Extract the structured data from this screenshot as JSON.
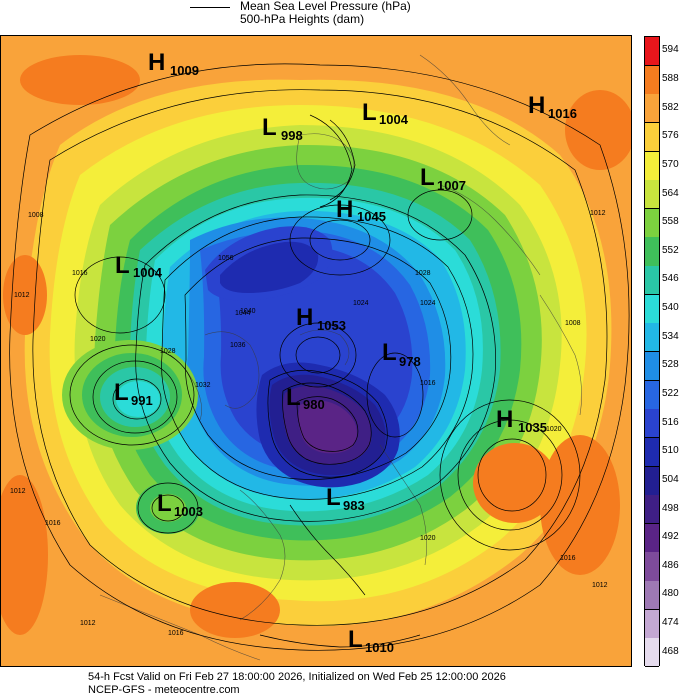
{
  "legend": {
    "items": [
      {
        "label": "Mean Sea Level Pressure (hPa)",
        "style": "line"
      },
      {
        "label": "500-hPa Heights (dam)",
        "style": "fill"
      }
    ]
  },
  "colorbar": {
    "levels": [
      "594",
      "588",
      "582",
      "576",
      "570",
      "564",
      "558",
      "552",
      "546",
      "540",
      "534",
      "528",
      "522",
      "516",
      "510",
      "504",
      "498",
      "492",
      "486",
      "480",
      "474",
      "468"
    ],
    "colors": [
      "#e8161c",
      "#f57c1f",
      "#f9a33a",
      "#fbcf3b",
      "#f4ee3a",
      "#c8e43e",
      "#7cd13f",
      "#3fbf5a",
      "#2ac7a6",
      "#2bdcd8",
      "#22b8e6",
      "#1f8ee6",
      "#2766e2",
      "#2a43cf",
      "#1e2bb0",
      "#221f92",
      "#3f1f85",
      "#5a2486",
      "#7e4b9b",
      "#9e79b4",
      "#c4a8d3",
      "#e6dcee"
    ]
  },
  "pressure_centers": [
    {
      "type": "H",
      "value": "1009",
      "color": "#000"
    },
    {
      "type": "L",
      "value": "998",
      "color": "#000"
    },
    {
      "type": "L",
      "value": "1004",
      "color": "#000"
    },
    {
      "type": "H",
      "value": "1016",
      "color": "#000"
    },
    {
      "type": "L",
      "value": "1007",
      "color": "#000"
    },
    {
      "type": "H",
      "value": "1045",
      "color": "#000"
    },
    {
      "type": "L",
      "value": "1004",
      "color": "#000"
    },
    {
      "type": "H",
      "value": "1053",
      "color": "#000"
    },
    {
      "type": "L",
      "value": "978",
      "color": "#000"
    },
    {
      "type": "L",
      "value": "991",
      "color": "#000"
    },
    {
      "type": "L",
      "value": "980",
      "color": "#000"
    },
    {
      "type": "H",
      "value": "1035",
      "color": "#000"
    },
    {
      "type": "L",
      "value": "1003",
      "color": "#000"
    },
    {
      "type": "L",
      "value": "983",
      "color": "#000"
    },
    {
      "type": "L",
      "value": "1010",
      "color": "#000"
    }
  ],
  "isobar_labels": [
    "1008",
    "1012",
    "1016",
    "1020",
    "1028",
    "1032",
    "1036",
    "1044",
    "1056",
    "1040",
    "1024",
    "1028",
    "1024",
    "1020",
    "1016",
    "1012",
    "1008",
    "1012",
    "1016",
    "1020",
    "1016",
    "1012",
    "1016",
    "1012"
  ],
  "footer": {
    "line1": "54-h Fcst Valid on Fri Feb 27 18:00:00 2026, Initialized on Wed Feb 25 12:00:00 2026",
    "line2": "NCEP-GFS  - meteocentre.com"
  }
}
